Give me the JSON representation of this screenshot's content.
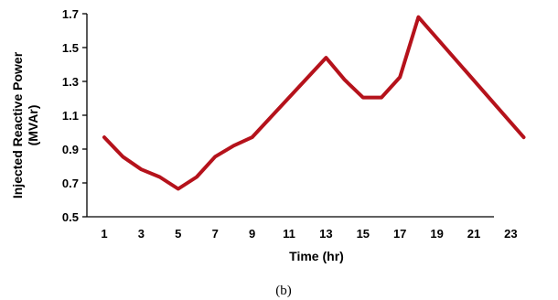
{
  "chart_data": {
    "type": "line",
    "xlabel": "Time (hr)",
    "ylabel_lines": [
      "Injected Reactive Power",
      "(MVAr)"
    ],
    "caption": "(b)",
    "x_ticks": [
      "1",
      "3",
      "5",
      "7",
      "9",
      "11",
      "13",
      "15",
      "17",
      "19",
      "21",
      "23"
    ],
    "y_ticks": [
      "0.5",
      "0.7",
      "0.9",
      "1.1",
      "1.3",
      "1.5",
      "1.7"
    ],
    "ylim": [
      0.5,
      1.7
    ],
    "grid": false,
    "line_color": "#b5121b",
    "series": [
      {
        "x": [
          1,
          2,
          3,
          4,
          5,
          6,
          7,
          8,
          9,
          11,
          13,
          14,
          15,
          16,
          17,
          18,
          23.7
        ],
        "y": [
          0.97,
          0.855,
          0.78,
          0.735,
          0.665,
          0.735,
          0.855,
          0.92,
          0.97,
          1.205,
          1.44,
          1.31,
          1.205,
          1.205,
          1.325,
          1.68,
          0.97
        ]
      }
    ]
  }
}
